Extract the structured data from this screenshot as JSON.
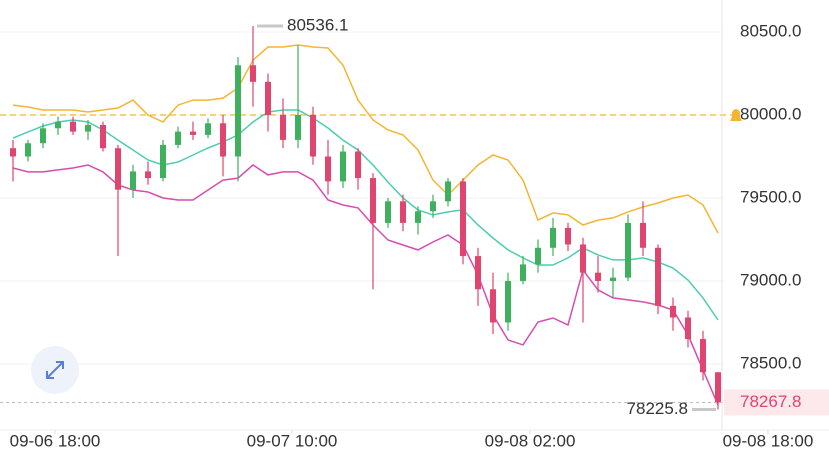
{
  "chart_data": {
    "type": "candlestick",
    "open": [
      79800,
      79750,
      79830,
      79920,
      79960,
      79900,
      79940,
      79800,
      79550,
      79660,
      79620,
      79820,
      79900,
      79880,
      79950,
      79750,
      80300,
      80200,
      80000,
      79850,
      80000,
      79750,
      79600,
      79780,
      79620,
      79350,
      79480,
      79350,
      79420,
      79480,
      79600,
      79150,
      78950,
      78750,
      79000,
      79100,
      79200,
      79320,
      79220,
      79050,
      79000,
      79020,
      79350,
      79200,
      78850,
      78780,
      78650,
      78450
    ],
    "high": [
      79850,
      79850,
      79950,
      79990,
      79990,
      79970,
      79960,
      79820,
      79700,
      79720,
      79850,
      79930,
      79960,
      79980,
      80000,
      80350,
      80536.1,
      80250,
      80100,
      80420,
      80050,
      79850,
      79820,
      79800,
      79650,
      79500,
      79520,
      79450,
      79520,
      79620,
      79620,
      79200,
      79050,
      79050,
      79150,
      79250,
      79380,
      79350,
      79260,
      79150,
      79080,
      79400,
      79480,
      79220,
      78900,
      78820,
      78700,
      78450
    ],
    "low": [
      79600,
      79720,
      79800,
      79880,
      79880,
      79850,
      79780,
      79150,
      79500,
      79580,
      79600,
      79800,
      79850,
      79860,
      79630,
      79600,
      80050,
      79900,
      79800,
      79800,
      79700,
      79520,
      79560,
      79550,
      78950,
      79320,
      79300,
      79280,
      79380,
      79450,
      79100,
      78850,
      78680,
      78700,
      78980,
      79050,
      79150,
      79180,
      78750,
      78930,
      78900,
      79000,
      79150,
      78800,
      78700,
      78600,
      78400,
      78225.8
    ],
    "close": [
      79750,
      79830,
      79920,
      79960,
      79900,
      79940,
      79800,
      79550,
      79660,
      79620,
      79820,
      79900,
      79880,
      79950,
      79750,
      80300,
      80200,
      80000,
      79850,
      80000,
      79750,
      79600,
      79780,
      79620,
      79350,
      79480,
      79350,
      79420,
      79480,
      79600,
      79150,
      78950,
      78750,
      79000,
      79100,
      79200,
      79320,
      79220,
      79050,
      79000,
      79020,
      79350,
      79200,
      78850,
      78780,
      78650,
      78450,
      78267.8
    ],
    "up_color": "#3fb05e",
    "down_color": "#e0456f",
    "series": [
      {
        "color": "#f2b632",
        "values": [
          80060,
          80048,
          80030,
          80030,
          80030,
          80018,
          80030,
          80042,
          80090,
          80000,
          79958,
          80060,
          80090,
          80090,
          80102,
          80163,
          80331,
          80410,
          80410,
          80422,
          80410,
          80404,
          80301,
          80090,
          79970,
          79910,
          79880,
          79789,
          79608,
          79518,
          79608,
          79699,
          79759,
          79729,
          79608,
          79367,
          79410,
          79398,
          79337,
          79367,
          79380,
          79416,
          79446,
          79470,
          79500,
          79518,
          79458,
          79289
        ]
      },
      {
        "color": "#4dcdb0",
        "values": [
          79861,
          79898,
          79934,
          79958,
          79970,
          79958,
          79910,
          79849,
          79789,
          79729,
          79699,
          79717,
          79759,
          79801,
          79837,
          79880,
          79958,
          80018,
          80030,
          80030,
          79982,
          79922,
          79849,
          79789,
          79699,
          79596,
          79500,
          79428,
          79398,
          79416,
          79428,
          79337,
          79259,
          79187,
          79139,
          79096,
          79096,
          79139,
          79199,
          79157,
          79127,
          79127,
          79139,
          79114,
          79078,
          79006,
          78898,
          78765
        ]
      },
      {
        "color": "#d64cb0",
        "values": [
          79681,
          79657,
          79657,
          79669,
          79681,
          79699,
          79657,
          79578,
          79548,
          79536,
          79500,
          79488,
          79488,
          79548,
          79608,
          79620,
          79699,
          79639,
          79657,
          79657,
          79608,
          79488,
          79458,
          79440,
          79337,
          79247,
          79217,
          79187,
          79235,
          79277,
          79217,
          79036,
          78795,
          78645,
          78615,
          78753,
          78777,
          78735,
          79066,
          78946,
          78898,
          78886,
          78874,
          78855,
          78825,
          78675,
          78464,
          78253
        ]
      }
    ],
    "alert_line": {
      "value": 80000,
      "color": "#f2b632"
    },
    "ylim": [
      78102,
      80693
    ],
    "yticks": [
      {
        "value": 78500,
        "label": "78500.0"
      },
      {
        "value": 79000,
        "label": "79000.0"
      },
      {
        "value": 79500,
        "label": "79500.0"
      },
      {
        "value": 80000,
        "label": "80000.0"
      },
      {
        "value": 80500,
        "label": "80500.0"
      }
    ],
    "xlim": [
      -0.8667,
      54.4
    ],
    "xticks": [
      {
        "value": 2.8,
        "label": "09-06 18:00"
      },
      {
        "value": 18.6,
        "label": "09-07 10:00"
      },
      {
        "value": 34.47,
        "label": "09-08 02:00"
      },
      {
        "value": 50.33,
        "label": "09-08 18:00"
      }
    ],
    "grid": true
  }
}
